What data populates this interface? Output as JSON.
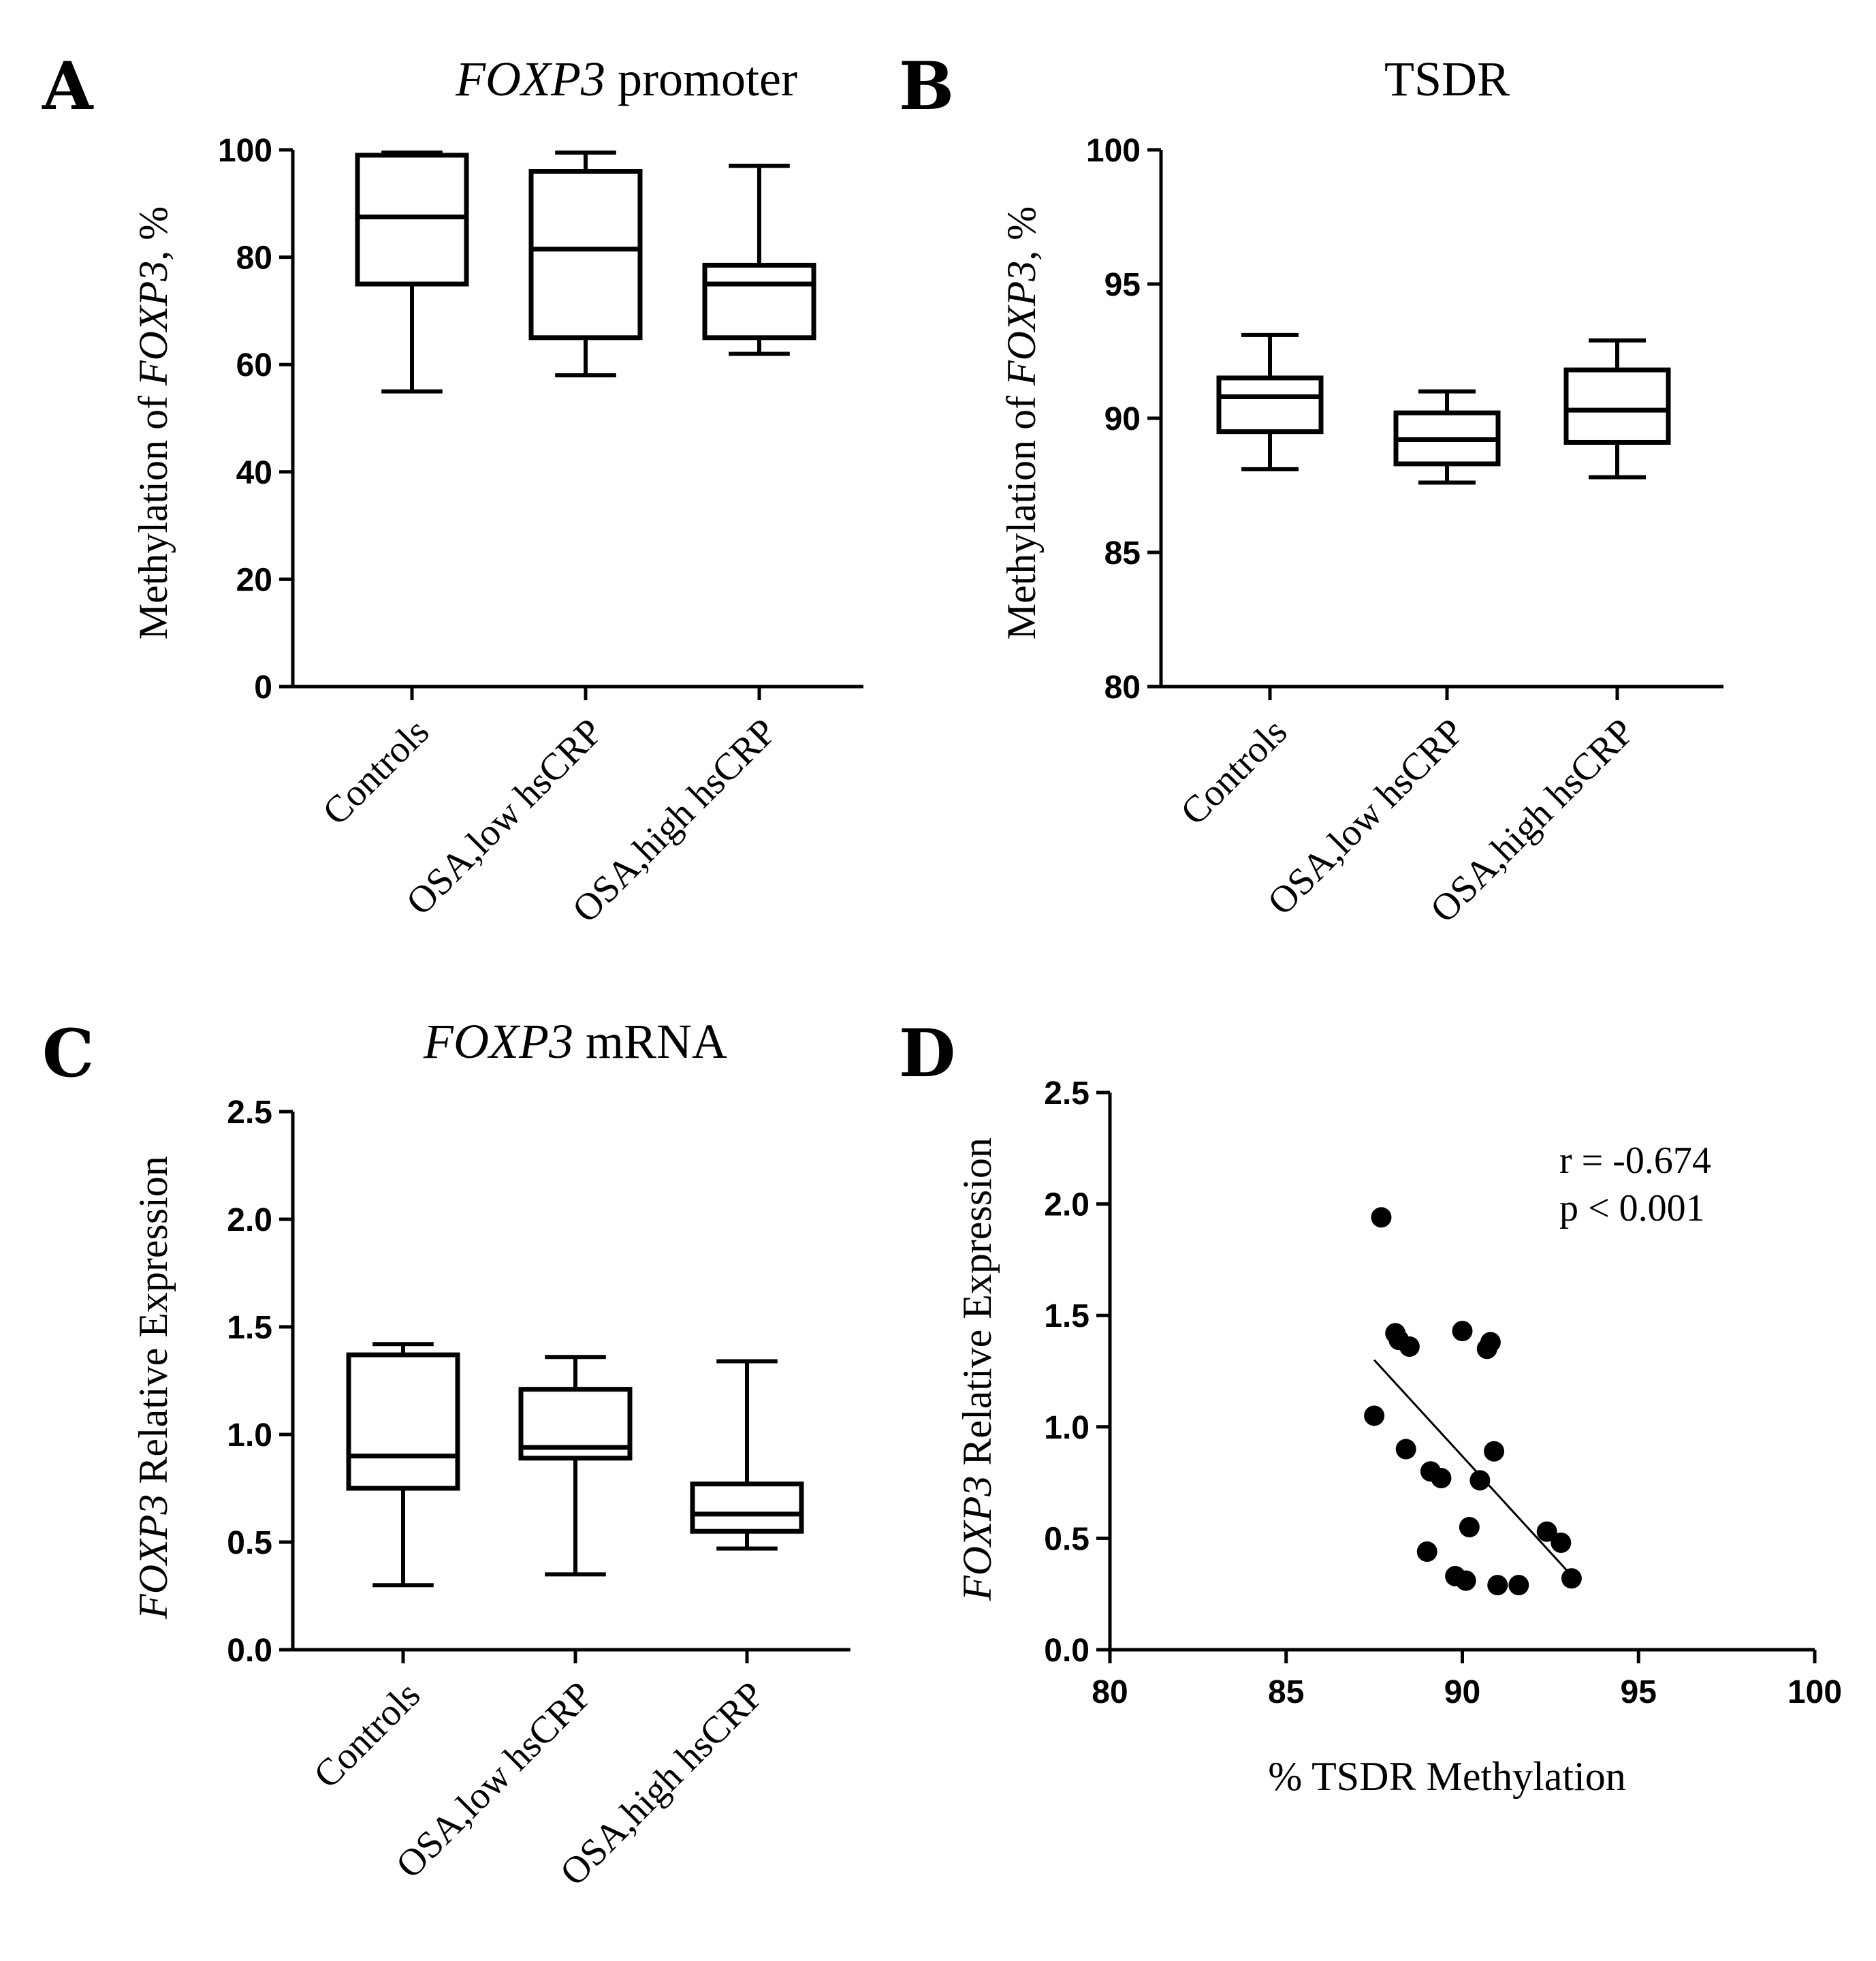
{
  "chart_data": [
    {
      "panel": "A",
      "type": "box",
      "title_italic": "FOXP3",
      "title_rest": " promoter",
      "ylabel_pre": "Methylation of ",
      "ylabel_italic": "FOXP3",
      "ylabel_post": ", %",
      "ylim": [
        0,
        100
      ],
      "yticks": [
        0,
        20,
        40,
        60,
        80,
        100
      ],
      "ytick_labels": [
        "0",
        "20",
        "40",
        "60",
        "80",
        "100"
      ],
      "categories": [
        "Controls",
        "OSA,low hsCRP",
        "OSA,high hsCRP"
      ],
      "boxes": [
        {
          "min": 55,
          "q1": 75,
          "median": 87.5,
          "q3": 99,
          "max": 99.5
        },
        {
          "min": 58,
          "q1": 65,
          "median": 81.5,
          "q3": 96,
          "max": 99.5
        },
        {
          "min": 62,
          "q1": 65,
          "median": 75,
          "q3": 78.5,
          "max": 97
        }
      ]
    },
    {
      "panel": "B",
      "type": "box",
      "title": "TSDR",
      "ylabel_pre": "Methylation of ",
      "ylabel_italic": "FOXP3",
      "ylabel_post": ", %",
      "ylim": [
        80,
        100
      ],
      "yticks": [
        80,
        85,
        90,
        95,
        100
      ],
      "ytick_labels": [
        "80",
        "85",
        "90",
        "95",
        "100"
      ],
      "categories": [
        "Controls",
        "OSA,low hsCRP",
        "OSA,high hsCRP"
      ],
      "boxes": [
        {
          "min": 88.1,
          "q1": 89.5,
          "median": 90.8,
          "q3": 91.5,
          "max": 93.1
        },
        {
          "min": 87.6,
          "q1": 88.3,
          "median": 89.2,
          "q3": 90.2,
          "max": 91
        },
        {
          "min": 87.8,
          "q1": 89.1,
          "median": 90.3,
          "q3": 91.8,
          "max": 92.9
        }
      ]
    },
    {
      "panel": "C",
      "type": "box",
      "title_italic": "FOXP3",
      "title_rest": " mRNA",
      "ylabel_italic": "FOXP3",
      "ylabel_post": " Relative Expression",
      "ylim": [
        0,
        2.5
      ],
      "yticks": [
        0,
        0.5,
        1,
        1.5,
        2,
        2.5
      ],
      "ytick_labels": [
        "0.0",
        "0.5",
        "1.0",
        "1.5",
        "2.0",
        "2.5"
      ],
      "categories": [
        "Controls",
        "OSA,low hsCRP",
        "OSA,high hsCRP"
      ],
      "boxes": [
        {
          "min": 0.3,
          "q1": 0.75,
          "median": 0.9,
          "q3": 1.37,
          "max": 1.42
        },
        {
          "min": 0.35,
          "q1": 0.89,
          "median": 0.94,
          "q3": 1.21,
          "max": 1.36
        },
        {
          "min": 0.47,
          "q1": 0.55,
          "median": 0.63,
          "q3": 0.77,
          "max": 1.34
        }
      ]
    },
    {
      "panel": "D",
      "type": "scatter",
      "xlabel": "% TSDR Methylation",
      "ylabel_italic": "FOXP3",
      "ylabel_post": " Relative Expression",
      "xlim": [
        80,
        100
      ],
      "ylim": [
        0,
        2.5
      ],
      "xticks": [
        80,
        85,
        90,
        95,
        100
      ],
      "xtick_labels": [
        "80",
        "85",
        "90",
        "95",
        "100"
      ],
      "yticks": [
        0,
        0.5,
        1,
        1.5,
        2,
        2.5
      ],
      "ytick_labels": [
        "0.0",
        "0.5",
        "1.0",
        "1.5",
        "2.0",
        "2.5"
      ],
      "annotation_r": "r = -0.674",
      "annotation_p": "p < 0.001",
      "points": [
        [
          87.7,
          1.94
        ],
        [
          88.1,
          1.42
        ],
        [
          88.2,
          1.39
        ],
        [
          88.5,
          1.36
        ],
        [
          87.5,
          1.05
        ],
        [
          88.4,
          0.9
        ],
        [
          89.1,
          0.8
        ],
        [
          89.4,
          0.77
        ],
        [
          89.0,
          0.44
        ],
        [
          89.8,
          0.33
        ],
        [
          90.1,
          0.31
        ],
        [
          90.0,
          1.43
        ],
        [
          90.7,
          1.35
        ],
        [
          90.8,
          1.38
        ],
        [
          90.5,
          0.76
        ],
        [
          90.9,
          0.89
        ],
        [
          90.2,
          0.55
        ],
        [
          91.0,
          0.29
        ],
        [
          91.6,
          0.29
        ],
        [
          92.4,
          0.53
        ],
        [
          92.8,
          0.48
        ],
        [
          93.1,
          0.32
        ]
      ],
      "fit_line": {
        "x": [
          87.5,
          93
        ],
        "y": [
          1.3,
          0.35
        ]
      }
    }
  ]
}
